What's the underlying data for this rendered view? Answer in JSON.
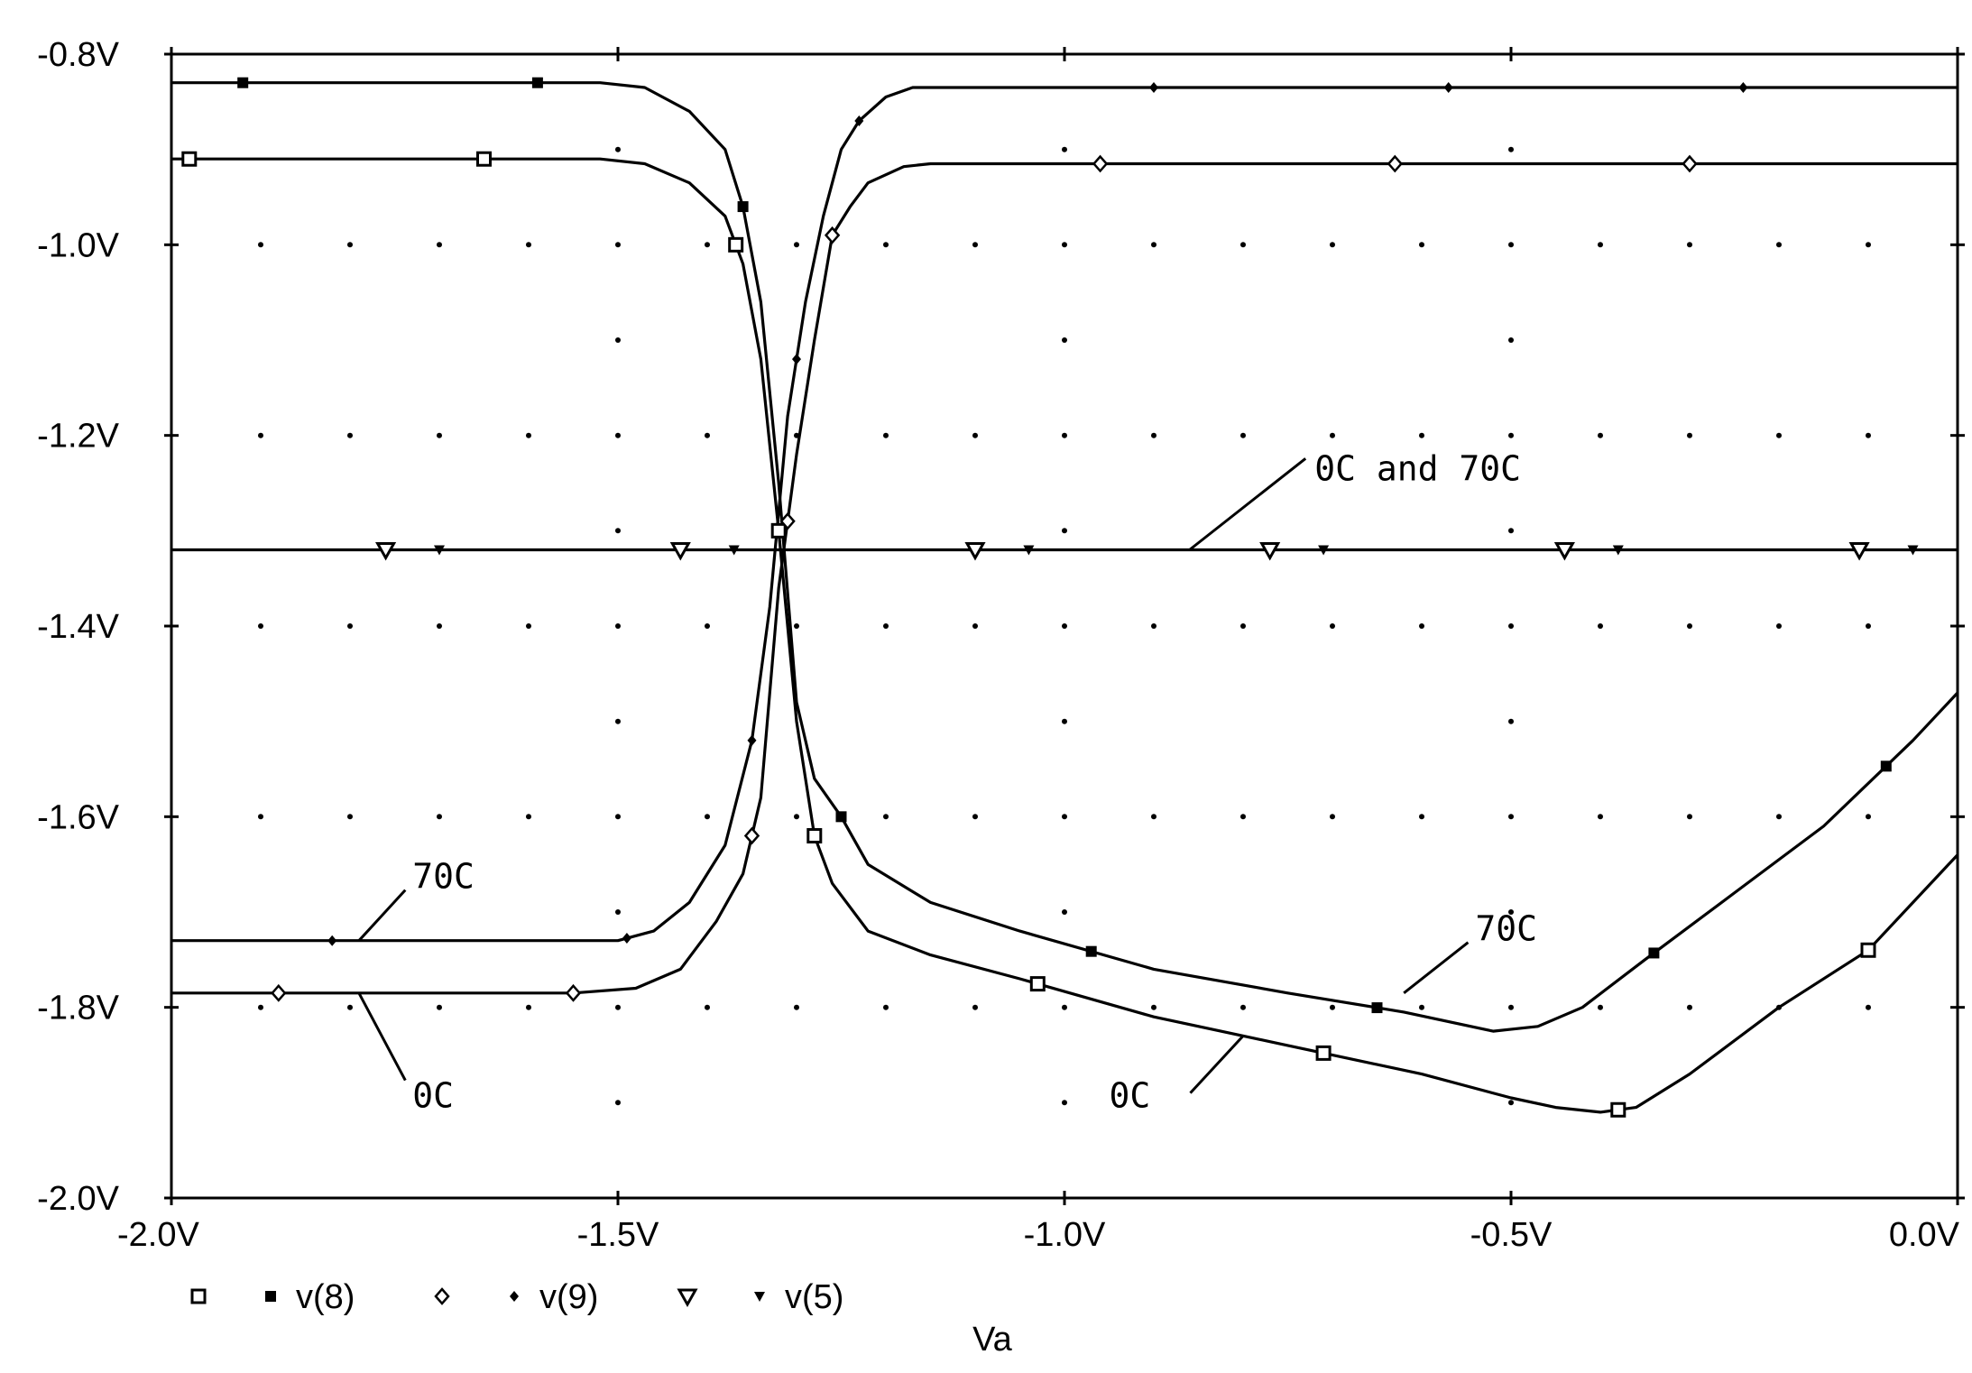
{
  "chart_data": {
    "type": "line",
    "xlabel": "Va",
    "ylabel": "",
    "xlim": [
      -2.0,
      0.0
    ],
    "ylim": [
      -2.0,
      -0.8
    ],
    "x_ticks": [
      -2.0,
      -1.5,
      -1.0,
      -0.5,
      0.0
    ],
    "x_tick_labels": [
      "-2.0V",
      "-1.5V",
      "-1.0V",
      "-0.5V",
      "0.0V"
    ],
    "y_ticks": [
      -0.8,
      -1.0,
      -1.2,
      -1.4,
      -1.6,
      -1.8,
      -2.0
    ],
    "y_tick_labels": [
      "-0.8V",
      "-1.0V",
      "-1.2V",
      "-1.4V",
      "-1.6V",
      "-1.8V",
      "-2.0V"
    ],
    "grid": "dotted",
    "legend": {
      "position": "bottom-left",
      "entries": [
        {
          "marker": "square-open",
          "label": ""
        },
        {
          "marker": "square-filled",
          "label": "v(8)"
        },
        {
          "marker": "diamond-open",
          "label": ""
        },
        {
          "marker": "diamond-filled",
          "label": "v(9)"
        },
        {
          "marker": "triangle-open",
          "label": ""
        },
        {
          "marker": "triangle-filled",
          "label": "v(5)"
        }
      ]
    },
    "series": [
      {
        "name": "v(8)",
        "temperature": "0C",
        "marker": "square-open",
        "x": [
          -2.0,
          -1.6,
          -1.52,
          -1.47,
          -1.42,
          -1.38,
          -1.36,
          -1.34,
          -1.32,
          -1.3,
          -1.28,
          -1.26,
          -1.22,
          -1.15,
          -1.05,
          -0.9,
          -0.75,
          -0.6,
          -0.5,
          -0.45,
          -0.4,
          -0.36,
          -0.3,
          -0.2,
          -0.1,
          0.0
        ],
        "y": [
          -0.91,
          -0.91,
          -0.91,
          -0.915,
          -0.935,
          -0.97,
          -1.02,
          -1.12,
          -1.3,
          -1.5,
          -1.62,
          -1.67,
          -1.72,
          -1.745,
          -1.77,
          -1.81,
          -1.84,
          -1.87,
          -1.895,
          -1.905,
          -1.91,
          -1.905,
          -1.87,
          -1.8,
          -1.74,
          -1.64
        ]
      },
      {
        "name": "v(8)",
        "temperature": "70C",
        "marker": "square-filled",
        "x": [
          -2.0,
          -1.6,
          -1.52,
          -1.47,
          -1.42,
          -1.38,
          -1.36,
          -1.34,
          -1.32,
          -1.3,
          -1.28,
          -1.25,
          -1.22,
          -1.15,
          -1.05,
          -0.9,
          -0.75,
          -0.62,
          -0.52,
          -0.47,
          -0.42,
          -0.35,
          -0.25,
          -0.15,
          -0.05,
          0.0
        ],
        "y": [
          -0.83,
          -0.83,
          -0.83,
          -0.835,
          -0.86,
          -0.9,
          -0.96,
          -1.06,
          -1.25,
          -1.48,
          -1.56,
          -1.6,
          -1.65,
          -1.69,
          -1.72,
          -1.76,
          -1.785,
          -1.805,
          -1.825,
          -1.82,
          -1.8,
          -1.75,
          -1.68,
          -1.61,
          -1.52,
          -1.47
        ]
      },
      {
        "name": "v(9)",
        "temperature": "0C",
        "marker": "diamond-open",
        "x": [
          -2.0,
          -1.55,
          -1.48,
          -1.43,
          -1.39,
          -1.36,
          -1.34,
          -1.32,
          -1.3,
          -1.28,
          -1.26,
          -1.24,
          -1.22,
          -1.18,
          -1.15,
          -1.0,
          -0.5,
          0.0
        ],
        "y": [
          -1.785,
          -1.785,
          -1.78,
          -1.76,
          -1.71,
          -1.66,
          -1.58,
          -1.36,
          -1.22,
          -1.1,
          -0.99,
          -0.96,
          -0.935,
          -0.918,
          -0.915,
          -0.915,
          -0.915,
          -0.915
        ]
      },
      {
        "name": "v(9)",
        "temperature": "70C",
        "marker": "diamond-filled",
        "x": [
          -2.0,
          -1.55,
          -1.5,
          -1.46,
          -1.42,
          -1.38,
          -1.35,
          -1.33,
          -1.31,
          -1.29,
          -1.27,
          -1.25,
          -1.23,
          -1.2,
          -1.17,
          -1.14,
          -1.0,
          -0.5,
          0.0
        ],
        "y": [
          -1.73,
          -1.73,
          -1.73,
          -1.72,
          -1.69,
          -1.63,
          -1.52,
          -1.38,
          -1.18,
          -1.06,
          -0.97,
          -0.9,
          -0.87,
          -0.845,
          -0.835,
          -0.835,
          -0.835,
          -0.835,
          -0.835
        ]
      },
      {
        "name": "v(5)",
        "temperature": "0C and 70C",
        "marker": "triangle",
        "x": [
          -2.0,
          0.0
        ],
        "y": [
          -1.32,
          -1.32
        ]
      }
    ],
    "annotations": [
      {
        "text": "0C and 70C",
        "at": [
          -0.72,
          -1.247
        ],
        "points_to": [
          -0.86,
          -1.32
        ]
      },
      {
        "text": "70C",
        "at": [
          -1.73,
          -1.675
        ],
        "points_to": [
          -1.79,
          -1.73
        ]
      },
      {
        "text": "0C",
        "at": [
          -1.73,
          -1.905
        ],
        "points_to": [
          -1.79,
          -1.785
        ]
      },
      {
        "text": "70C",
        "at": [
          -0.54,
          -1.73
        ],
        "points_to": [
          -0.62,
          -1.785
        ]
      },
      {
        "text": "0C",
        "at": [
          -0.95,
          -1.905
        ],
        "points_to": [
          -0.8,
          -1.83
        ]
      }
    ]
  }
}
